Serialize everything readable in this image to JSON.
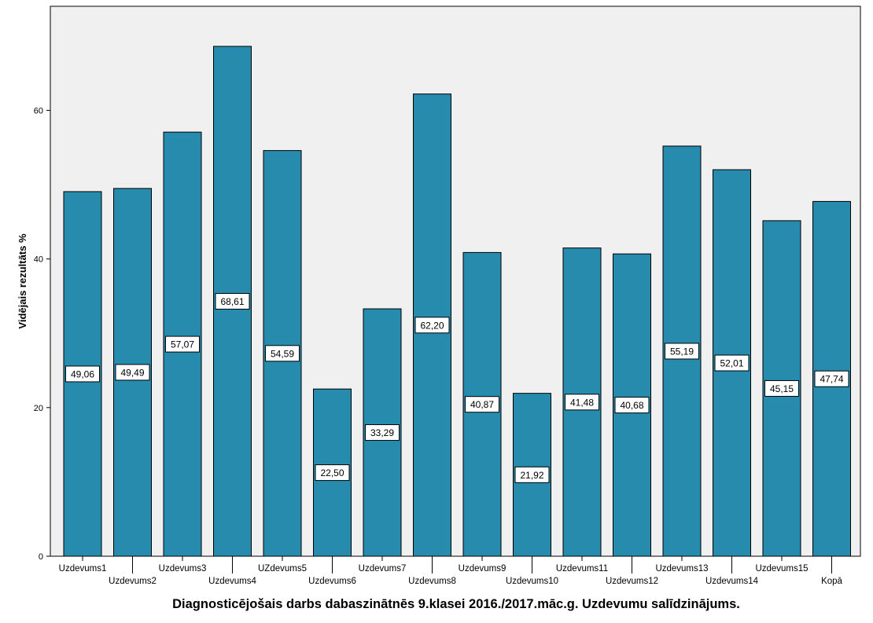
{
  "chart_data": {
    "type": "bar",
    "xlabel": "Diagnosticējošais darbs dabaszinātnēs 9.klasei 2016./2017.māc.g. Uzdevumu salīdzinājums.",
    "ylabel": "Vidējais rezultāts %",
    "ylim": [
      0,
      74
    ],
    "yticks": [
      0,
      20,
      40,
      60
    ],
    "grid": false,
    "categories": [
      "Uzdevums1",
      "Uzdevums2",
      "Uzdevums3",
      "Uzdevums4",
      "UZdevums5",
      "Uzdevums6",
      "Uzdevums7",
      "Uzdevums8",
      "Uzdevums9",
      "Uzdevums10",
      "Uzdevums11",
      "Uzdevums12",
      "Uzdevums13",
      "Uzdevums14",
      "Uzdevums15",
      "Kopā"
    ],
    "values": [
      49.06,
      49.49,
      57.07,
      68.61,
      54.59,
      22.5,
      33.29,
      62.2,
      40.87,
      21.92,
      41.48,
      40.68,
      55.19,
      52.01,
      45.15,
      47.74
    ],
    "value_labels": [
      "49,06",
      "49,49",
      "57,07",
      "68,61",
      "54,59",
      "22,50",
      "33,29",
      "62,20",
      "40,87",
      "21,92",
      "41,48",
      "40,68",
      "55,19",
      "52,01",
      "45,15",
      "47,74"
    ],
    "colors": {
      "bar": "#268bad",
      "plot_background": "#f0f0f0"
    }
  }
}
